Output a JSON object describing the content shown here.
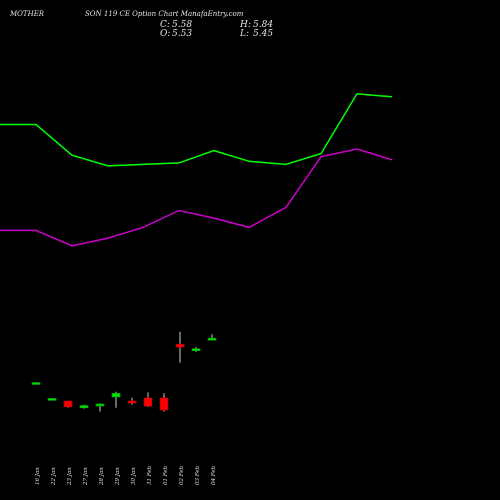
{
  "header": {
    "title_left": "MOTHER",
    "title_right": "SON 119 CE Option Chart ManafaEntry.com"
  },
  "ohlc": {
    "c_label": "C:",
    "c_value": "5.58",
    "h_label": "H:",
    "h_value": "5.84",
    "o_label": "O:",
    "o_value": "5.53",
    "l_label": "L:",
    "l_value": "5.45"
  },
  "colors": {
    "background": "#000000",
    "up": "#00e000",
    "down": "#ff0000",
    "band_upper": "#00ff00",
    "band_lower": "#cc00cc",
    "text": "#e6e6e6"
  },
  "chart_data": {
    "type": "candlestick",
    "title": "MOTHERSON 119 CE Option Chart",
    "categories": [
      "16 Jan",
      "22 Jan",
      "23 Jan",
      "27 Jan",
      "28 Jan",
      "29 Jan",
      "30 Jan",
      "31 Feb",
      "01 Feb",
      "02 Feb",
      "03 Feb",
      "04 Feb"
    ],
    "candles": [
      {
        "date": "16 Jan",
        "open": 2.7,
        "high": 2.71,
        "low": 2.69,
        "close": 2.7
      },
      {
        "date": "22 Jan",
        "open": 1.6,
        "high": 1.68,
        "low": 1.58,
        "close": 1.66
      },
      {
        "date": "23 Jan",
        "open": 1.5,
        "high": 1.52,
        "low": 1.05,
        "close": 1.1
      },
      {
        "date": "27 Jan",
        "open": 1.05,
        "high": 1.25,
        "low": 1.0,
        "close": 1.2
      },
      {
        "date": "28 Jan",
        "open": 1.2,
        "high": 1.35,
        "low": 0.8,
        "close": 1.3
      },
      {
        "date": "29 Jan",
        "open": 1.75,
        "high": 2.1,
        "low": 1.05,
        "close": 2.0
      },
      {
        "date": "30 Jan",
        "open": 1.5,
        "high": 1.7,
        "low": 1.25,
        "close": 1.35
      },
      {
        "date": "31 Feb",
        "open": 1.7,
        "high": 2.05,
        "low": 1.1,
        "close": 1.15
      },
      {
        "date": "01 Feb",
        "open": 1.7,
        "high": 2.0,
        "low": 0.8,
        "close": 0.9
      },
      {
        "date": "02 Feb",
        "open": 5.2,
        "high": 6.0,
        "low": 4.0,
        "close": 5.0
      },
      {
        "date": "03 Feb",
        "open": 4.8,
        "high": 5.0,
        "low": 4.7,
        "close": 4.9
      },
      {
        "date": "04 Feb",
        "open": 5.53,
        "high": 5.84,
        "low": 5.45,
        "close": 5.58
      }
    ],
    "bands": {
      "upper": [
        19.5,
        19.5,
        17.5,
        16.8,
        16.9,
        17.0,
        17.8,
        17.1,
        16.9,
        17.6,
        21.5,
        21.3
      ],
      "lower": [
        12.6,
        12.6,
        11.6,
        12.1,
        12.8,
        13.9,
        13.4,
        12.8,
        14.1,
        17.4,
        17.9,
        17.2
      ]
    },
    "ylim": [
      -3,
      25
    ]
  }
}
